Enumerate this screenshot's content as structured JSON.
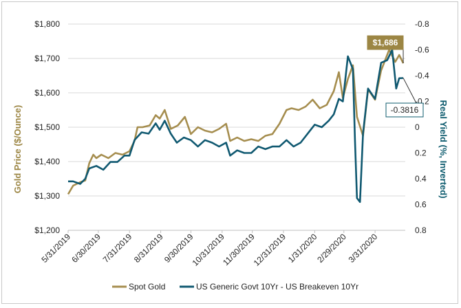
{
  "chart_data": {
    "type": "line",
    "title": "",
    "x_tick_labels": [
      "5/31/2019",
      "6/30/2019",
      "7/31/2019",
      "8/31/2019",
      "9/30/2019",
      "10/31/2019",
      "11/30/2019",
      "12/31/2019",
      "1/31/2020",
      "2/29/2020",
      "3/31/2020"
    ],
    "x_range": [
      "2019-05-31",
      "2020-04-30"
    ],
    "left_axis": {
      "label": "Gold Price ($/Ounce)",
      "ticks": [
        "$1,200",
        "$1,300",
        "$1,400",
        "$1,500",
        "$1,600",
        "$1,700",
        "$1,800"
      ],
      "ylim": [
        1200,
        1800
      ],
      "color": "#9c8644"
    },
    "right_axis": {
      "label": "Real Yield (%, Inverted)",
      "ticks": [
        "-0.8",
        "-0.6",
        "-0.4",
        "-0.2",
        "0",
        "0.2",
        "0.4",
        "0.6",
        "0.8"
      ],
      "ylim": [
        0.8,
        -0.8
      ],
      "inverted": true,
      "color": "#0d5b6e"
    },
    "grid": "horizontal",
    "legend_placement": "bottom",
    "series": [
      {
        "name": "Spot Gold",
        "axis": "left",
        "color": "#a58d4e",
        "points": [
          [
            "2019-05-31",
            1305
          ],
          [
            "2019-06-05",
            1330
          ],
          [
            "2019-06-12",
            1340
          ],
          [
            "2019-06-17",
            1345
          ],
          [
            "2019-06-21",
            1395
          ],
          [
            "2019-06-25",
            1420
          ],
          [
            "2019-06-28",
            1410
          ],
          [
            "2019-07-03",
            1420
          ],
          [
            "2019-07-10",
            1410
          ],
          [
            "2019-07-17",
            1425
          ],
          [
            "2019-07-24",
            1420
          ],
          [
            "2019-07-31",
            1430
          ],
          [
            "2019-08-05",
            1460
          ],
          [
            "2019-08-08",
            1500
          ],
          [
            "2019-08-13",
            1500
          ],
          [
            "2019-08-20",
            1505
          ],
          [
            "2019-08-26",
            1535
          ],
          [
            "2019-08-30",
            1525
          ],
          [
            "2019-09-04",
            1550
          ],
          [
            "2019-09-10",
            1495
          ],
          [
            "2019-09-17",
            1505
          ],
          [
            "2019-09-24",
            1530
          ],
          [
            "2019-09-30",
            1480
          ],
          [
            "2019-10-07",
            1500
          ],
          [
            "2019-10-14",
            1490
          ],
          [
            "2019-10-21",
            1485
          ],
          [
            "2019-10-28",
            1495
          ],
          [
            "2019-11-04",
            1510
          ],
          [
            "2019-11-08",
            1460
          ],
          [
            "2019-11-15",
            1470
          ],
          [
            "2019-11-22",
            1460
          ],
          [
            "2019-11-29",
            1465
          ],
          [
            "2019-12-06",
            1460
          ],
          [
            "2019-12-13",
            1475
          ],
          [
            "2019-12-20",
            1480
          ],
          [
            "2019-12-27",
            1510
          ],
          [
            "2020-01-03",
            1550
          ],
          [
            "2020-01-08",
            1555
          ],
          [
            "2020-01-15",
            1550
          ],
          [
            "2020-01-22",
            1560
          ],
          [
            "2020-01-29",
            1580
          ],
          [
            "2020-02-05",
            1555
          ],
          [
            "2020-02-12",
            1565
          ],
          [
            "2020-02-19",
            1605
          ],
          [
            "2020-02-24",
            1660
          ],
          [
            "2020-02-28",
            1585
          ],
          [
            "2020-03-04",
            1640
          ],
          [
            "2020-03-09",
            1680
          ],
          [
            "2020-03-13",
            1530
          ],
          [
            "2020-03-19",
            1475
          ],
          [
            "2020-03-24",
            1610
          ],
          [
            "2020-03-31",
            1580
          ],
          [
            "2020-04-06",
            1665
          ],
          [
            "2020-04-14",
            1725
          ],
          [
            "2020-04-20",
            1690
          ],
          [
            "2020-04-24",
            1710
          ],
          [
            "2020-04-28",
            1686
          ]
        ]
      },
      {
        "name": "US Generic Govt 10Yr - US Breakeven 10Yr",
        "axis": "right",
        "color": "#0f5870",
        "points": [
          [
            "2019-05-31",
            0.42
          ],
          [
            "2019-06-05",
            0.42
          ],
          [
            "2019-06-12",
            0.44
          ],
          [
            "2019-06-17",
            0.4
          ],
          [
            "2019-06-21",
            0.32
          ],
          [
            "2019-06-28",
            0.3
          ],
          [
            "2019-07-05",
            0.33
          ],
          [
            "2019-07-12",
            0.27
          ],
          [
            "2019-07-19",
            0.27
          ],
          [
            "2019-07-26",
            0.22
          ],
          [
            "2019-07-31",
            0.22
          ],
          [
            "2019-08-05",
            0.1
          ],
          [
            "2019-08-12",
            0.04
          ],
          [
            "2019-08-19",
            0.05
          ],
          [
            "2019-08-26",
            -0.03
          ],
          [
            "2019-08-30",
            0.02
          ],
          [
            "2019-09-04",
            -0.05
          ],
          [
            "2019-09-10",
            0.05
          ],
          [
            "2019-09-16",
            0.12
          ],
          [
            "2019-09-23",
            0.08
          ],
          [
            "2019-09-30",
            0.1
          ],
          [
            "2019-10-07",
            0.15
          ],
          [
            "2019-10-14",
            0.1
          ],
          [
            "2019-10-21",
            0.12
          ],
          [
            "2019-10-28",
            0.15
          ],
          [
            "2019-11-04",
            0.12
          ],
          [
            "2019-11-08",
            0.22
          ],
          [
            "2019-11-15",
            0.18
          ],
          [
            "2019-11-22",
            0.2
          ],
          [
            "2019-11-29",
            0.2
          ],
          [
            "2019-12-06",
            0.15
          ],
          [
            "2019-12-13",
            0.17
          ],
          [
            "2019-12-20",
            0.15
          ],
          [
            "2019-12-27",
            0.15
          ],
          [
            "2020-01-03",
            0.1
          ],
          [
            "2020-01-10",
            0.15
          ],
          [
            "2020-01-17",
            0.12
          ],
          [
            "2020-01-24",
            0.05
          ],
          [
            "2020-01-31",
            -0.02
          ],
          [
            "2020-02-07",
            0.0
          ],
          [
            "2020-02-14",
            -0.05
          ],
          [
            "2020-02-19",
            -0.1
          ],
          [
            "2020-02-24",
            -0.22
          ],
          [
            "2020-02-28",
            -0.2
          ],
          [
            "2020-03-04",
            -0.55
          ],
          [
            "2020-03-09",
            -0.45
          ],
          [
            "2020-03-11",
            0.1
          ],
          [
            "2020-03-13",
            0.55
          ],
          [
            "2020-03-16",
            0.58
          ],
          [
            "2020-03-19",
            0.05
          ],
          [
            "2020-03-24",
            -0.3
          ],
          [
            "2020-03-31",
            -0.22
          ],
          [
            "2020-04-06",
            -0.5
          ],
          [
            "2020-04-12",
            -0.52
          ],
          [
            "2020-04-17",
            -0.6
          ],
          [
            "2020-04-21",
            -0.3
          ],
          [
            "2020-04-24",
            -0.38
          ],
          [
            "2020-04-28",
            -0.3816
          ]
        ]
      }
    ],
    "annotations": [
      {
        "text": "$1,686",
        "series": "Spot Gold"
      },
      {
        "text": "-0.3816",
        "series": "US Generic Govt 10Yr - US Breakeven 10Yr"
      }
    ]
  }
}
